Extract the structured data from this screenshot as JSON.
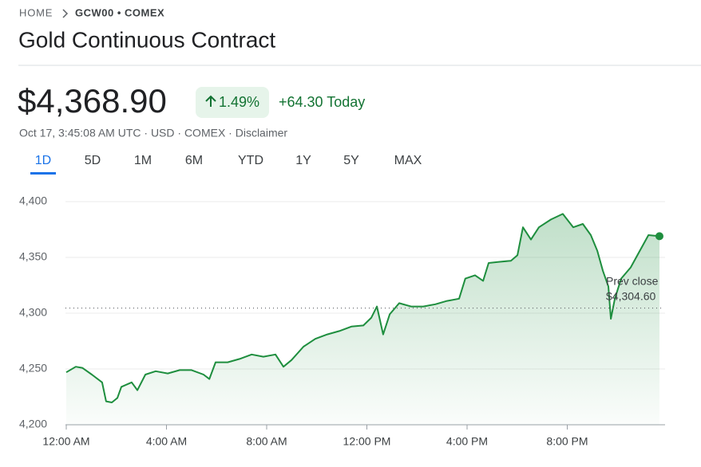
{
  "header": {
    "breadcrumb": {
      "home": "HOME",
      "symbol": "GCW00 • COMEX"
    },
    "title": "Gold Continuous Contract",
    "price": "$4,368.90",
    "change_percent": "1.49%",
    "change": "+64.30 Today",
    "meta": "Oct 17, 3:45:08 AM UTC · USD · COMEX · Disclaimer",
    "tabs": [
      "1D",
      "5D",
      "1M",
      "6M",
      "YTD",
      "1Y",
      "5Y",
      "MAX"
    ],
    "selected_tab": 0
  },
  "chart_data": {
    "type": "line",
    "color": "#1e8e3e",
    "grid": true,
    "x": [
      0,
      0.38,
      0.64,
      1.02,
      1.43,
      1.59,
      1.82,
      2.04,
      2.2,
      2.61,
      2.84,
      3.16,
      3.57,
      4.05,
      4.53,
      5.0,
      5.48,
      5.71,
      5.96,
      6.44,
      6.92,
      7.4,
      7.87,
      8.35,
      8.67,
      8.99,
      9.47,
      9.94,
      10.42,
      10.9,
      11.38,
      11.86,
      12.18,
      12.4,
      12.65,
      12.91,
      13.29,
      13.77,
      14.25,
      14.73,
      15.2,
      15.68,
      15.93,
      16.32,
      16.64,
      16.86,
      17.27,
      17.75,
      18.01,
      18.23,
      18.55,
      18.87,
      19.35,
      19.82,
      20.24,
      20.62,
      20.94,
      21.2,
      21.42,
      21.64,
      21.74,
      21.9,
      22.15,
      22.53,
      22.85,
      23.24,
      23.68
    ],
    "values": [
      4247,
      4252,
      4251,
      4245,
      4238,
      4221,
      4220,
      4224,
      4234,
      4238,
      4231,
      4245,
      4248,
      4246,
      4249,
      4249,
      4245,
      4241,
      4256,
      4256,
      4259,
      4263,
      4261,
      4263,
      4252,
      4258,
      4270,
      4277,
      4281,
      4284,
      4288,
      4289,
      4296,
      4306,
      4281,
      4299,
      4309,
      4306,
      4306,
      4308,
      4311,
      4313,
      4331,
      4334,
      4329,
      4345,
      4346,
      4347,
      4352,
      4377,
      4366,
      4377,
      4384,
      4389,
      4377,
      4380,
      4370,
      4356,
      4338,
      4324,
      4295,
      4313,
      4331,
      4341,
      4354,
      4370,
      4369
    ],
    "xlim": [
      0,
      24
    ],
    "xticks": [
      {
        "value": 0,
        "label": "12:00 AM"
      },
      {
        "value": 4,
        "label": "4:00 AM"
      },
      {
        "value": 8,
        "label": "8:00 AM"
      },
      {
        "value": 12,
        "label": "12:00 PM"
      },
      {
        "value": 16,
        "label": "4:00 PM"
      },
      {
        "value": 20,
        "label": "8:00 PM"
      }
    ],
    "ylim": [
      4200,
      4400
    ],
    "yticks": [
      {
        "value": 4200,
        "label": "4,200"
      },
      {
        "value": 4250,
        "label": "4,250"
      },
      {
        "value": 4300,
        "label": "4,300"
      },
      {
        "value": 4350,
        "label": "4,350"
      },
      {
        "value": 4400,
        "label": "4,400"
      }
    ],
    "prev_close": {
      "label": "Prev close",
      "value": 4304.6,
      "value_label": "$4,304.60"
    }
  }
}
